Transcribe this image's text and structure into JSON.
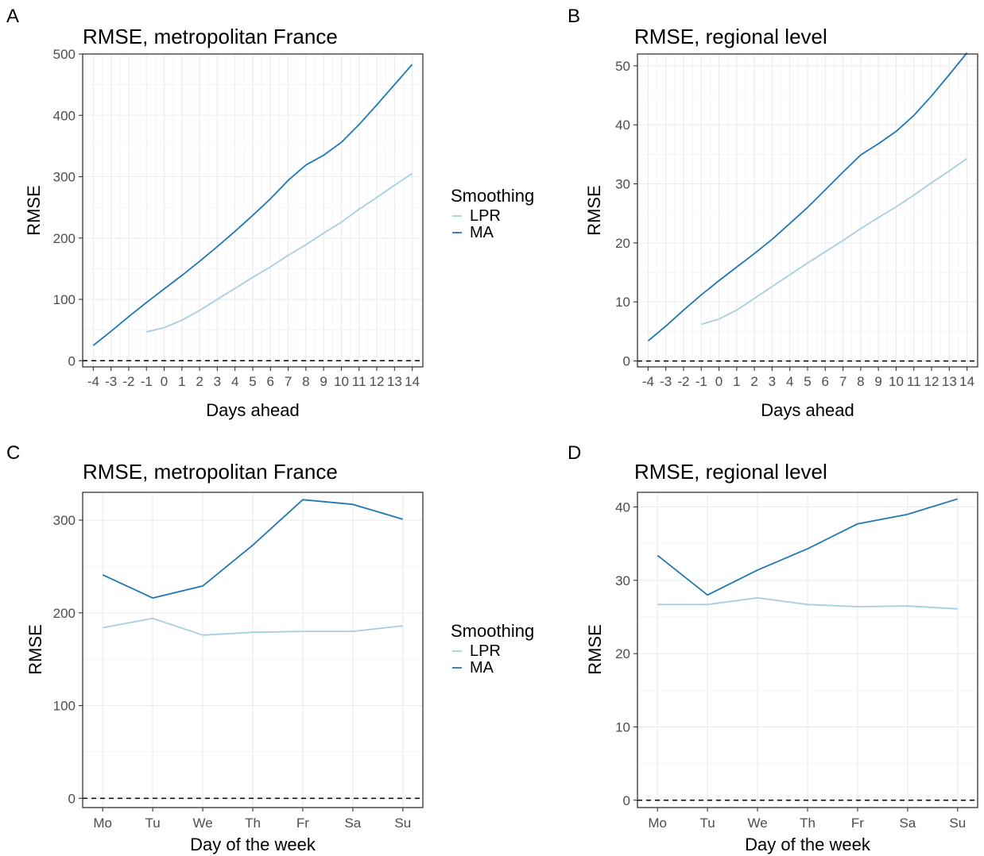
{
  "chart_data": [
    {
      "panel_label": "A",
      "type": "line",
      "title": "RMSE, metropolitan France",
      "xlabel": "Days ahead",
      "ylabel": "RMSE",
      "x": [
        -4,
        -3,
        -2,
        -1,
        0,
        1,
        2,
        3,
        4,
        5,
        6,
        7,
        8,
        9,
        10,
        11,
        12,
        13,
        14
      ],
      "x_tick_labels": [
        "-4",
        "-3",
        "-2",
        "-1",
        "0",
        "1",
        "2",
        "3",
        "4",
        "5",
        "6",
        "7",
        "8",
        "9",
        "10",
        "11",
        "12",
        "13",
        "14"
      ],
      "xlim": [
        -4.6,
        14.6
      ],
      "ylim": [
        -10,
        500
      ],
      "y_ticks": [
        0,
        100,
        200,
        300,
        400,
        500
      ],
      "legend": {
        "title": "Smoothing",
        "entries": [
          "LPR",
          "MA"
        ]
      },
      "series": [
        {
          "name": "LPR",
          "color": "#a6cee3",
          "x": [
            -1,
            0,
            1,
            2,
            3,
            4,
            5,
            6,
            7,
            8,
            9,
            10,
            11,
            12,
            13,
            14
          ],
          "values": [
            47,
            54,
            66,
            82,
            100,
            118,
            136,
            153,
            172,
            189,
            208,
            226,
            247,
            266,
            286,
            305
          ]
        },
        {
          "name": "MA",
          "color": "#1f78b4",
          "x": [
            -4,
            -3,
            -2,
            -1,
            0,
            1,
            2,
            3,
            4,
            5,
            6,
            7,
            8,
            9,
            10,
            11,
            12,
            13,
            14
          ],
          "values": [
            25,
            48,
            72,
            95,
            117,
            139,
            162,
            186,
            211,
            237,
            264,
            294,
            319,
            335,
            356,
            385,
            417,
            450,
            483
          ]
        }
      ],
      "reference_line": {
        "y": 0,
        "style": "dashed"
      },
      "grid": true
    },
    {
      "panel_label": "B",
      "type": "line",
      "title": "RMSE, regional level",
      "xlabel": "Days ahead",
      "ylabel": "RMSE",
      "x": [
        -4,
        -3,
        -2,
        -1,
        0,
        1,
        2,
        3,
        4,
        5,
        6,
        7,
        8,
        9,
        10,
        11,
        12,
        13,
        14
      ],
      "x_tick_labels": [
        "-4",
        "-3",
        "-2",
        "-1",
        "0",
        "1",
        "2",
        "3",
        "4",
        "5",
        "6",
        "7",
        "8",
        "9",
        "10",
        "11",
        "12",
        "13",
        "14"
      ],
      "xlim": [
        -4.6,
        14.6
      ],
      "ylim": [
        -1,
        52
      ],
      "y_ticks": [
        0,
        10,
        20,
        30,
        40,
        50
      ],
      "series": [
        {
          "name": "LPR",
          "color": "#a6cee3",
          "x": [
            -1,
            0,
            1,
            2,
            3,
            4,
            5,
            6,
            7,
            8,
            9,
            10,
            11,
            12,
            13,
            14
          ],
          "values": [
            6.2,
            7.1,
            8.6,
            10.6,
            12.6,
            14.6,
            16.6,
            18.5,
            20.4,
            22.4,
            24.3,
            26.1,
            28.1,
            30.2,
            32.2,
            34.3
          ]
        },
        {
          "name": "MA",
          "color": "#1f78b4",
          "x": [
            -4,
            -3,
            -2,
            -1,
            0,
            1,
            2,
            3,
            4,
            5,
            6,
            7,
            8,
            9,
            10,
            11,
            12,
            13,
            14
          ],
          "values": [
            3.4,
            5.9,
            8.6,
            11.2,
            13.6,
            15.9,
            18.2,
            20.6,
            23.3,
            26.0,
            29.0,
            32.0,
            34.9,
            36.8,
            38.9,
            41.6,
            44.9,
            48.5,
            52.2
          ]
        }
      ],
      "reference_line": {
        "y": 0,
        "style": "dashed"
      },
      "grid": true
    },
    {
      "panel_label": "C",
      "type": "line",
      "title": "RMSE, metropolitan France",
      "xlabel": "Day of the week",
      "ylabel": "RMSE",
      "categories": [
        "Mo",
        "Tu",
        "We",
        "Th",
        "Fr",
        "Sa",
        "Su"
      ],
      "ylim": [
        -10,
        330
      ],
      "y_ticks": [
        0,
        100,
        200,
        300
      ],
      "legend": {
        "title": "Smoothing",
        "entries": [
          "LPR",
          "MA"
        ]
      },
      "series": [
        {
          "name": "LPR",
          "color": "#a6cee3",
          "values": [
            184,
            194,
            176,
            179,
            180,
            180,
            186
          ]
        },
        {
          "name": "MA",
          "color": "#1f78b4",
          "values": [
            241,
            216,
            229,
            273,
            322,
            317,
            301
          ]
        }
      ],
      "reference_line": {
        "y": 0,
        "style": "dashed"
      },
      "grid": true
    },
    {
      "panel_label": "D",
      "type": "line",
      "title": "RMSE, regional level",
      "xlabel": "Day of the week",
      "ylabel": "RMSE",
      "categories": [
        "Mo",
        "Tu",
        "We",
        "Th",
        "Fr",
        "Sa",
        "Su"
      ],
      "ylim": [
        -1,
        42
      ],
      "y_ticks": [
        0,
        10,
        20,
        30,
        40
      ],
      "series": [
        {
          "name": "LPR",
          "color": "#a6cee3",
          "values": [
            26.7,
            26.7,
            27.6,
            26.7,
            26.4,
            26.5,
            26.1
          ]
        },
        {
          "name": "MA",
          "color": "#1f78b4",
          "values": [
            33.4,
            28.0,
            31.4,
            34.3,
            37.7,
            39.0,
            41.1
          ]
        }
      ],
      "reference_line": {
        "y": 0,
        "style": "dashed"
      },
      "grid": true
    }
  ]
}
